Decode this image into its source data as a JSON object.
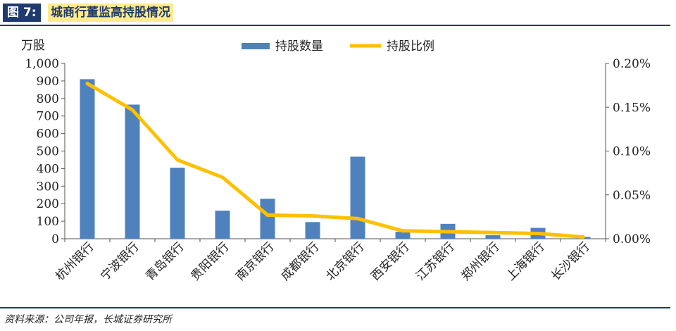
{
  "header": {
    "figure_label": "图 7:",
    "title": "城商行董监高持股情况"
  },
  "footer": {
    "source": "资料来源：公司年报，长城证券研究所"
  },
  "colors": {
    "bar": "#4f81bd",
    "line": "#ffc000",
    "header_bg": "#1f3a6e",
    "title_bg": "#ffeb8a"
  },
  "chart_data": {
    "type": "bar",
    "title": "城商行董监高持股情况",
    "ylabel_left": "万股",
    "categories": [
      "杭州银行",
      "宁波银行",
      "青岛银行",
      "贵阳银行",
      "南京银行",
      "成都银行",
      "北京银行",
      "西安银行",
      "江苏银行",
      "郑州银行",
      "上海银行",
      "长沙银行"
    ],
    "series": [
      {
        "name": "持股数量",
        "type": "bar",
        "axis": "left",
        "values": [
          910,
          765,
          405,
          160,
          228,
          95,
          468,
          40,
          85,
          20,
          62,
          10
        ]
      },
      {
        "name": "持股比例",
        "type": "line",
        "axis": "right",
        "values": [
          0.177,
          0.147,
          0.09,
          0.07,
          0.027,
          0.026,
          0.023,
          0.009,
          0.008,
          0.007,
          0.006,
          0.002
        ]
      }
    ],
    "ylim_left": [
      0,
      1000
    ],
    "yticks_left": [
      "0",
      "100",
      "200",
      "300",
      "400",
      "500",
      "600",
      "700",
      "800",
      "900",
      "1,000"
    ],
    "ylim_right": [
      0,
      0.2
    ],
    "yticks_right": [
      "0.00%",
      "0.05%",
      "0.10%",
      "0.15%",
      "0.20%"
    ],
    "legend": [
      "持股数量",
      "持股比例"
    ],
    "legend_position": "top-center",
    "grid": false
  }
}
